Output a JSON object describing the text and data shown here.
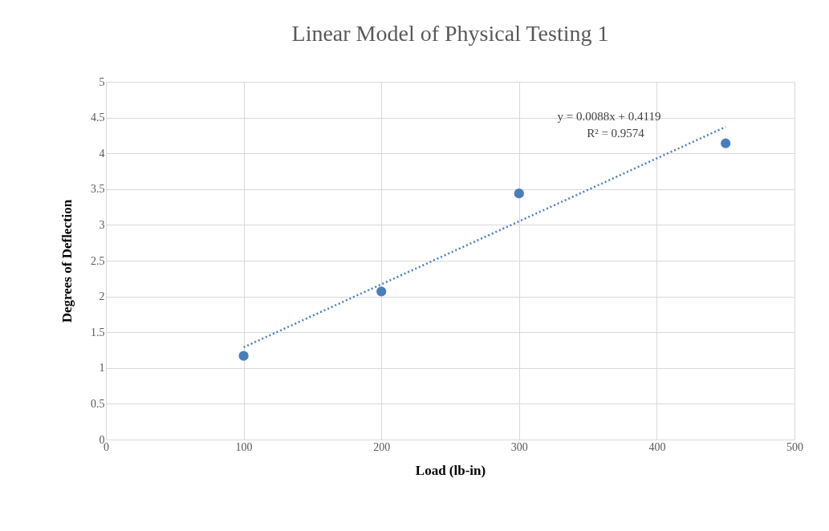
{
  "chart_data": {
    "type": "scatter",
    "title": "Linear Model of Physical Testing 1",
    "xlabel": "Load (lb-in)",
    "ylabel": "Degrees of Deflection",
    "series": [
      {
        "color": "#4a7ebb",
        "x": [
          100,
          200,
          300,
          450
        ],
        "values": [
          1.17,
          2.07,
          3.44,
          4.14
        ],
        "marker": "circle"
      },
      {
        "type": "line",
        "color": "#4a7ebb",
        "x": [
          100,
          450
        ],
        "values": [
          1.29,
          4.37
        ],
        "line_style": "dotted",
        "marker": "none"
      }
    ],
    "annotations": [
      "y = 0.0088x + 0.4119",
      "R² = 0.9574"
    ],
    "xlim": [
      0,
      500
    ],
    "xticks": [
      0,
      100,
      200,
      300,
      400,
      500
    ],
    "ylim": [
      0,
      5
    ],
    "yticks": [
      0,
      0.5,
      1,
      1.5,
      2,
      2.5,
      3,
      3.5,
      4,
      4.5,
      5
    ],
    "grid": true,
    "legend": false
  }
}
